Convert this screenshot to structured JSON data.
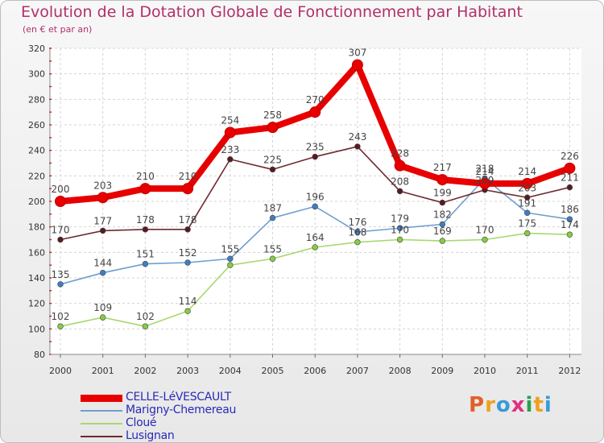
{
  "title": "Evolution de la Dotation Globale de Fonctionnement par Habitant",
  "subtitle": "(en € et par an)",
  "logo": {
    "letters": [
      "P",
      "r",
      "o",
      "x",
      "i",
      "t",
      "i"
    ],
    "colors": [
      "#e0602a",
      "#f0a020",
      "#3a9ad8",
      "#e03080",
      "#2aa050",
      "#f0a020",
      "#3a9ad8"
    ]
  },
  "chart_data": {
    "type": "line",
    "title": "Evolution de la Dotation Globale de Fonctionnement par Habitant",
    "subtitle": "(en € et par an)",
    "xlabel": "",
    "ylabel": "",
    "categories": [
      "2000",
      "2001",
      "2002",
      "2003",
      "2004",
      "2005",
      "2006",
      "2007",
      "2008",
      "2009",
      "2010",
      "2011",
      "2012"
    ],
    "ylim": [
      80,
      320
    ],
    "yticks": [
      80,
      100,
      120,
      140,
      160,
      180,
      200,
      220,
      240,
      260,
      280,
      300,
      320
    ],
    "grid": true,
    "legend_position": "bottom-left",
    "series": [
      {
        "name": "CELLE-LéVESCAULT",
        "color": "#e80000",
        "marker": "#e80000",
        "values": [
          200,
          203,
          210,
          210,
          254,
          258,
          270,
          307,
          228,
          217,
          214,
          214,
          226
        ]
      },
      {
        "name": "Marigny-Chemereau",
        "color": "#6e9fcf",
        "marker": "#3d7fc4",
        "values": [
          135,
          144,
          151,
          152,
          155,
          187,
          196,
          176,
          179,
          182,
          218,
          191,
          186
        ]
      },
      {
        "name": "Cloué",
        "color": "#a8d870",
        "marker": "#86cc44",
        "values": [
          102,
          109,
          102,
          114,
          150,
          155,
          164,
          168,
          170,
          169,
          170,
          175,
          174
        ]
      },
      {
        "name": "Lusignan",
        "color": "#6e2a30",
        "marker": "#5a1a20",
        "values": [
          170,
          177,
          178,
          178,
          233,
          225,
          235,
          243,
          208,
          199,
          209,
          203,
          211
        ]
      }
    ],
    "data_labels": [
      [
        "200",
        "203",
        "210",
        "210",
        "254",
        "258",
        "270",
        "307",
        "228",
        "217",
        "214",
        "214",
        "226"
      ],
      [
        "135",
        "144",
        "151",
        "152",
        "155",
        "187",
        "196",
        "176",
        "179",
        "182",
        "218",
        "191",
        "186"
      ],
      [
        "102",
        "109",
        "102",
        "114",
        "",
        "155",
        "164",
        "168",
        "170",
        "169",
        "170",
        "175",
        "174"
      ],
      [
        "170",
        "177",
        "178",
        "178",
        "233",
        "225",
        "235",
        "243",
        "208",
        "199",
        "209",
        "203",
        "211"
      ]
    ]
  }
}
